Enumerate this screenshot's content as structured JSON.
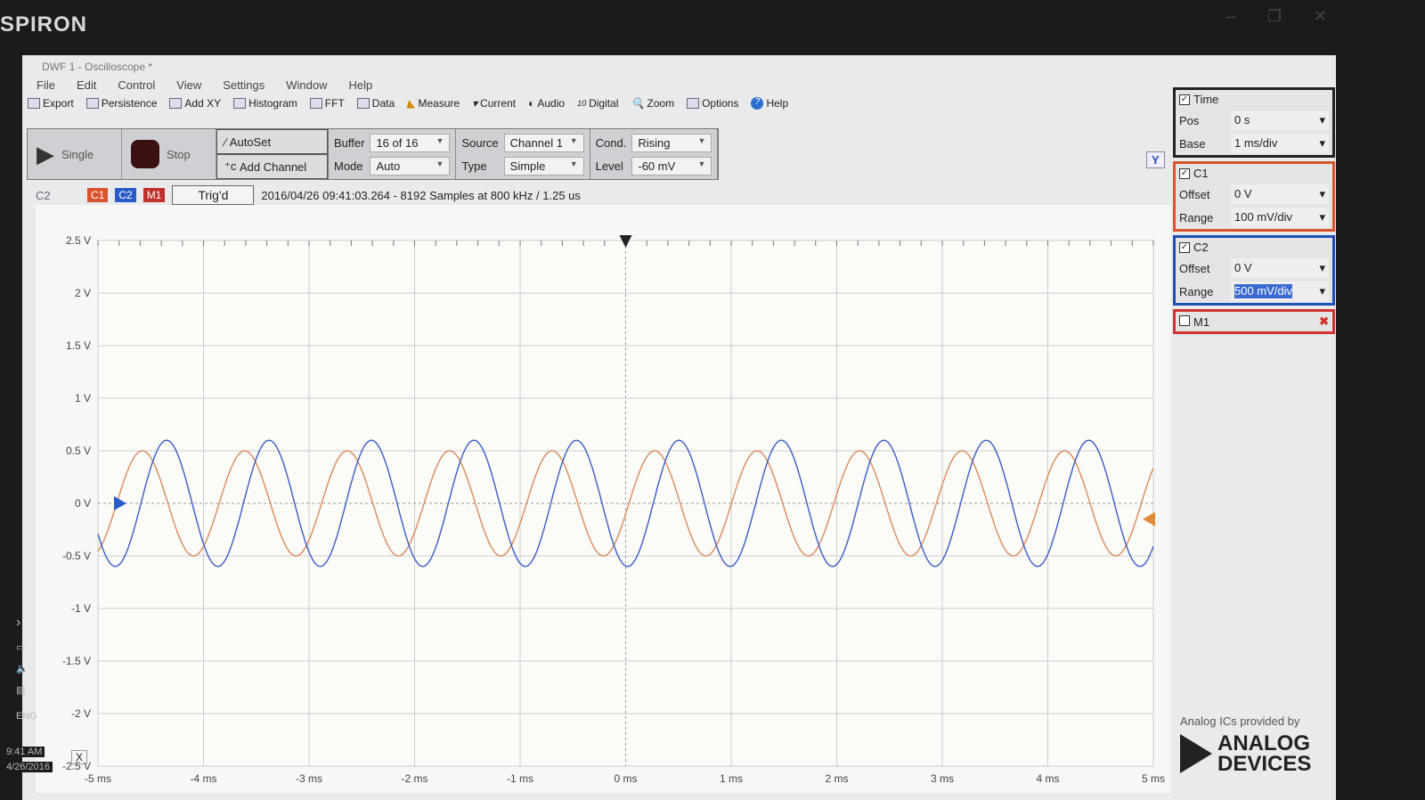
{
  "bezel": {
    "brand": "SPIRON"
  },
  "window": {
    "title": "DWF 1 - Oscilloscope *",
    "minimize": "–",
    "restore": "❐",
    "close": "✕"
  },
  "taskbar": {
    "language": "ENG",
    "time": "9:41 AM",
    "date": "4/26/2016"
  },
  "menu": [
    "File",
    "Edit",
    "Control",
    "View",
    "Settings",
    "Window",
    "Help"
  ],
  "toolbar1": [
    "Digital",
    "Zoom",
    "Options",
    "Help"
  ],
  "toolbar2": [
    "Export",
    "Persistence",
    "Add XY",
    "Histogram",
    "FFT",
    "Data",
    "Measure",
    "Current",
    "Audio"
  ],
  "controls": {
    "single": "Single",
    "stop": "Stop",
    "autoset": "AutoSet",
    "add_channel": "Add Channel",
    "buffer_label": "Buffer",
    "buffer": "16 of 16",
    "mode_label": "Mode",
    "mode": "Auto",
    "source_label": "Source",
    "source": "Channel 1",
    "type_label": "Type",
    "type": "Simple",
    "cond_label": "Cond.",
    "cond": "Rising",
    "level_label": "Level",
    "level": "-60 mV"
  },
  "status": {
    "channel": "C2",
    "chips": [
      "C1",
      "C2",
      "M1"
    ],
    "trig": "Trig'd",
    "info": "2016/04/26 09:41:03.264 - 8192 Samples at 800 kHz / 1.25 us",
    "y_button": "Y",
    "x_button": "X"
  },
  "panel": {
    "time": {
      "label": "Time",
      "checked": true,
      "pos_label": "Pos",
      "pos": "0 s",
      "base_label": "Base",
      "base": "1 ms/div"
    },
    "c1": {
      "label": "C1",
      "checked": true,
      "offset_label": "Offset",
      "offset": "0 V",
      "range_label": "Range",
      "range": "100 mV/div",
      "color": "#d9542c"
    },
    "c2": {
      "label": "C2",
      "checked": true,
      "offset_label": "Offset",
      "offset": "0 V",
      "range_label": "Range",
      "range": "500 mV/div",
      "color": "#1f4fb8"
    },
    "m1": {
      "label": "M1",
      "checked": false,
      "color": "#d0332f"
    }
  },
  "logo": {
    "caption": "Analog ICs provided by",
    "name_line1": "ANALOG",
    "name_line2": "DEVICES"
  },
  "chart_data": {
    "type": "line",
    "x_ticks": [
      "-5 ms",
      "-4 ms",
      "-3 ms",
      "-2 ms",
      "-1 ms",
      "0 ms",
      "1 ms",
      "2 ms",
      "3 ms",
      "4 ms",
      "5 ms"
    ],
    "y_ticks": [
      "2.5 V",
      "2 V",
      "1.5 V",
      "1 V",
      "0.5 V",
      "0 V",
      "-0.5 V",
      "-1 V",
      "-1.5 V",
      "-2 V",
      "-2.5 V"
    ],
    "xlim_ms": [
      -5,
      5
    ],
    "ylim_v": [
      -2.5,
      2.5
    ],
    "grid": true,
    "series": [
      {
        "name": "C1",
        "color": "#d98a5a",
        "waveform": "sine",
        "frequency_hz": 1030,
        "amplitude_v": 0.1,
        "peak_time_ms": -4.58,
        "scale_v_per_div": 0.1
      },
      {
        "name": "C2",
        "color": "#3b5cc4",
        "waveform": "sine",
        "frequency_hz": 1030,
        "amplitude_v": 0.6,
        "peak_time_ms": -4.35,
        "scale_v_per_div": 0.5
      }
    ]
  }
}
